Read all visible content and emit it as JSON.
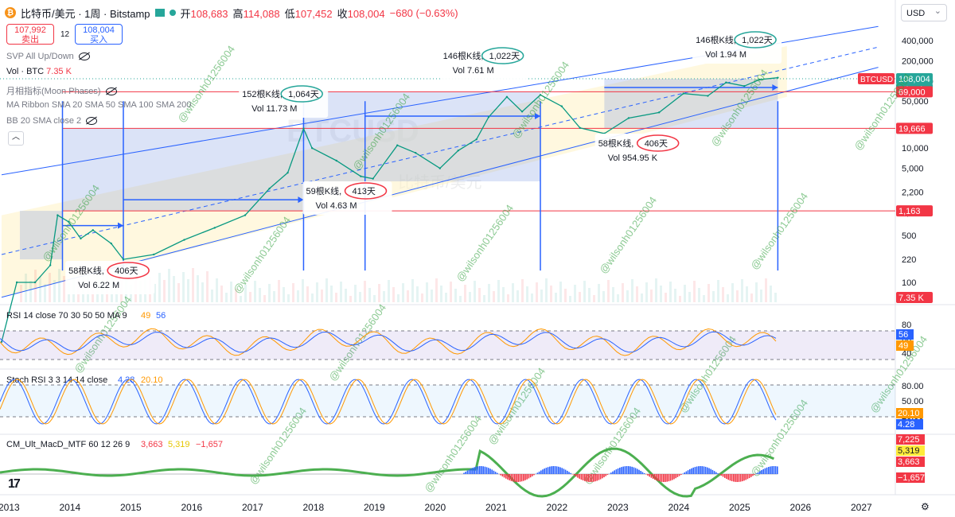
{
  "header": {
    "symbol_title": "比特币/美元 · 1周 · Bitstamp",
    "open_label": "开",
    "open_value": "108,683",
    "high_label": "高",
    "high_value": "114,088",
    "low_label": "低",
    "low_value": "107,452",
    "close_label": "收",
    "close_value": "108,004",
    "change_value": "−680 (−0.63%)"
  },
  "trade": {
    "sell_price": "107,992",
    "sell_label": "卖出",
    "spread": "12",
    "buy_price": "108,004",
    "buy_label": "买入"
  },
  "currency_select": "USD",
  "indicators": {
    "svp": "SVP All Up/Down",
    "vol_name": "Vol · BTC",
    "vol_value": "7.35 K",
    "monthly": "月相指标(Moon Phases)",
    "ribbon": "MA Ribbon SMA 20 SMA 50 SMA 100 SMA 200",
    "bb": "BB 20 SMA close 2"
  },
  "watermark_symbol": "BTCUSD",
  "watermark_name": "比特币/美元",
  "overlay_handle": "@wilsonh01256004",
  "chart_data": {
    "type": "line",
    "title": "比特币/美元 · 1周 · Bitstamp",
    "price_scale": "log",
    "y_ticks": [
      "400,000",
      "200,000",
      "100,000",
      "50,000",
      "20,000",
      "10,000",
      "5,000",
      "2,200",
      "1,100",
      "500",
      "220",
      "100"
    ],
    "x_ticks": [
      "2013",
      "2014",
      "2015",
      "2016",
      "2017",
      "2018",
      "2019",
      "2020",
      "2021",
      "2022",
      "2023",
      "2024",
      "2025",
      "2026",
      "2027"
    ],
    "close_series": {
      "name": "BTCUSD",
      "x": [
        2013.0,
        2013.25,
        2013.55,
        2013.8,
        2013.92,
        2014.1,
        2014.3,
        2014.5,
        2014.8,
        2015.0,
        2015.5,
        2016.0,
        2016.5,
        2017.0,
        2017.4,
        2017.7,
        2017.96,
        2018.1,
        2018.5,
        2018.9,
        2019.1,
        2019.5,
        2019.8,
        2020.2,
        2020.5,
        2020.8,
        2021.0,
        2021.3,
        2021.55,
        2021.85,
        2022.2,
        2022.5,
        2022.9,
        2023.3,
        2023.8,
        2024.2,
        2024.6,
        2024.9,
        2025.2,
        2025.45,
        2025.75
      ],
      "y": [
        13,
        100,
        100,
        180,
        1000,
        800,
        450,
        600,
        380,
        220,
        260,
        430,
        650,
        1000,
        2500,
        4300,
        19500,
        10000,
        6500,
        3800,
        3500,
        11000,
        8500,
        5000,
        9200,
        13500,
        29000,
        58000,
        35000,
        62000,
        42000,
        20000,
        16500,
        28000,
        34000,
        65000,
        60000,
        95000,
        84000,
        105000,
        112000
      ]
    },
    "price_labels": [
      {
        "text": "108,004",
        "color": "#26a69a"
      },
      {
        "text": "4d 17h",
        "color": "#26a69a"
      },
      {
        "text": "69,000",
        "color": "#f23645"
      },
      {
        "text": "19,666",
        "color": "#f23645"
      },
      {
        "text": "1,163",
        "color": "#f23645"
      },
      {
        "text": "7.35 K",
        "color": "#f23645"
      }
    ],
    "horizontal_levels": [
      69000,
      19666,
      1163
    ],
    "annotations": [
      {
        "count": "58根K线,",
        "days": "406天",
        "vol": "Vol 6.22 M",
        "ring": "#f23645"
      },
      {
        "count": "152根K线,",
        "days": "1,064天",
        "vol": "Vol 11.73 M",
        "ring": "#26a69a"
      },
      {
        "count": "59根K线,",
        "days": "413天",
        "vol": "Vol 4.63 M",
        "ring": "#f23645"
      },
      {
        "count": "146根K线,",
        "days": "1,022天",
        "vol": "Vol 7.61 M",
        "ring": "#26a69a"
      },
      {
        "count": "58根K线,",
        "days": "406天",
        "vol": "Vol 954.95 K",
        "ring": "#f23645"
      },
      {
        "count": "146根K线,",
        "days": "1,022天",
        "vol": "Vol 1.94 M",
        "ring": "#26a69a"
      }
    ],
    "rsi": {
      "label": "RSI 14 close 70 30 50 50 MA 9",
      "v1": "49",
      "v1_color": "#ff9800",
      "v2": "56",
      "v2_color": "#2962ff",
      "ticks": [
        "80",
        "60",
        "40"
      ],
      "tags": [
        {
          "text": "56",
          "color": "#2962ff"
        },
        {
          "text": "49",
          "color": "#ff9800"
        }
      ]
    },
    "stoch": {
      "label": "Stoch RSI 3 3 14 14 close",
      "v1": "4.28",
      "v1_color": "#2962ff",
      "v2": "20.10",
      "v2_color": "#ff9800",
      "ticks": [
        "80.00",
        "50.00",
        "20.00"
      ],
      "tags": [
        {
          "text": "20.10",
          "color": "#ff9800"
        },
        {
          "text": "4.28",
          "color": "#2962ff"
        }
      ]
    },
    "macd": {
      "label": "CM_Ult_MacD_MTF 60 12 26 9",
      "v1": "3,663",
      "v1_color": "#f23645",
      "v2": "5,319",
      "v2_color": "#ffeb3b",
      "v3": "−1,657",
      "v3_color": "#f23645",
      "tags": [
        {
          "text": "7,225",
          "color": "#f23645"
        },
        {
          "text": "5,319",
          "color": "#ffeb3b"
        },
        {
          "text": "3,663",
          "color": "#f23645"
        },
        {
          "text": "−1,657",
          "color": "#f23645"
        }
      ]
    }
  },
  "icons": {
    "collapse": "chevron-up-icon",
    "tradingview": "tradingview-logo-icon",
    "settings": "gear-icon"
  },
  "colors": {
    "up": "#26a69a",
    "down": "#f23645",
    "accent": "#2962ff"
  }
}
